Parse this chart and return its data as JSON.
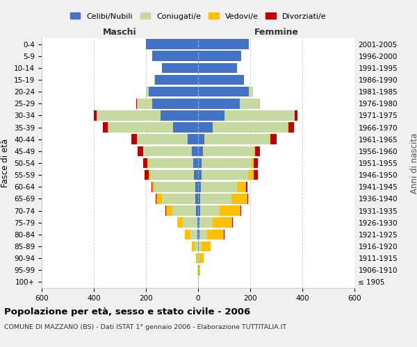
{
  "age_groups": [
    "100+",
    "95-99",
    "90-94",
    "85-89",
    "80-84",
    "75-79",
    "70-74",
    "65-69",
    "60-64",
    "55-59",
    "50-54",
    "45-49",
    "40-44",
    "35-39",
    "30-34",
    "25-29",
    "20-24",
    "15-19",
    "10-14",
    "5-9",
    "0-4"
  ],
  "birth_years": [
    "≤ 1905",
    "1906-1910",
    "1911-1915",
    "1916-1920",
    "1921-1925",
    "1926-1930",
    "1931-1935",
    "1936-1940",
    "1941-1945",
    "1946-1950",
    "1951-1955",
    "1956-1960",
    "1961-1965",
    "1966-1970",
    "1971-1975",
    "1976-1980",
    "1981-1985",
    "1986-1990",
    "1991-1995",
    "1996-2000",
    "2001-2005"
  ],
  "male": {
    "celibe": [
      0,
      0,
      0,
      1,
      2,
      4,
      8,
      10,
      12,
      15,
      18,
      25,
      40,
      95,
      145,
      175,
      190,
      165,
      140,
      175,
      200
    ],
    "coniugato": [
      0,
      2,
      4,
      12,
      30,
      55,
      90,
      130,
      155,
      170,
      175,
      185,
      195,
      250,
      245,
      60,
      10,
      2,
      0,
      0,
      0
    ],
    "vedovo": [
      0,
      2,
      5,
      10,
      18,
      20,
      25,
      20,
      8,
      5,
      3,
      2,
      1,
      1,
      0,
      0,
      0,
      0,
      0,
      0,
      0
    ],
    "divorziato": [
      0,
      0,
      0,
      0,
      0,
      1,
      2,
      3,
      4,
      15,
      15,
      20,
      20,
      20,
      10,
      2,
      1,
      0,
      0,
      0,
      0
    ]
  },
  "female": {
    "nubile": [
      0,
      1,
      1,
      2,
      4,
      5,
      7,
      9,
      10,
      12,
      14,
      18,
      25,
      55,
      100,
      160,
      195,
      175,
      150,
      165,
      195
    ],
    "coniugata": [
      0,
      2,
      5,
      12,
      30,
      50,
      75,
      120,
      140,
      180,
      190,
      195,
      250,
      290,
      270,
      75,
      15,
      2,
      0,
      0,
      0
    ],
    "vedova": [
      1,
      5,
      15,
      35,
      65,
      75,
      80,
      60,
      35,
      20,
      10,
      5,
      2,
      2,
      1,
      1,
      0,
      0,
      0,
      0,
      0
    ],
    "divorziata": [
      0,
      0,
      0,
      0,
      1,
      2,
      3,
      4,
      5,
      18,
      15,
      20,
      25,
      22,
      10,
      2,
      1,
      0,
      0,
      0,
      0
    ]
  },
  "colors": {
    "celibe": "#4472c4",
    "coniugato": "#c5d9a0",
    "vedovo": "#ffc000",
    "divorziato": "#c00000"
  },
  "xlim": 600,
  "title": "Popolazione per età, sesso e stato civile - 2006",
  "subtitle": "COMUNE DI MAZZANO (BS) - Dati ISTAT 1° gennaio 2006 - Elaborazione TUTTITALIA.IT",
  "ylabel_left": "Fasce di età",
  "ylabel_right": "Anni di nascita",
  "legend_labels": [
    "Celibi/Nubili",
    "Coniugati/e",
    "Vedovi/e",
    "Divorziati/e"
  ],
  "bg_color": "#f0f0f0",
  "plot_bg": "#ffffff"
}
